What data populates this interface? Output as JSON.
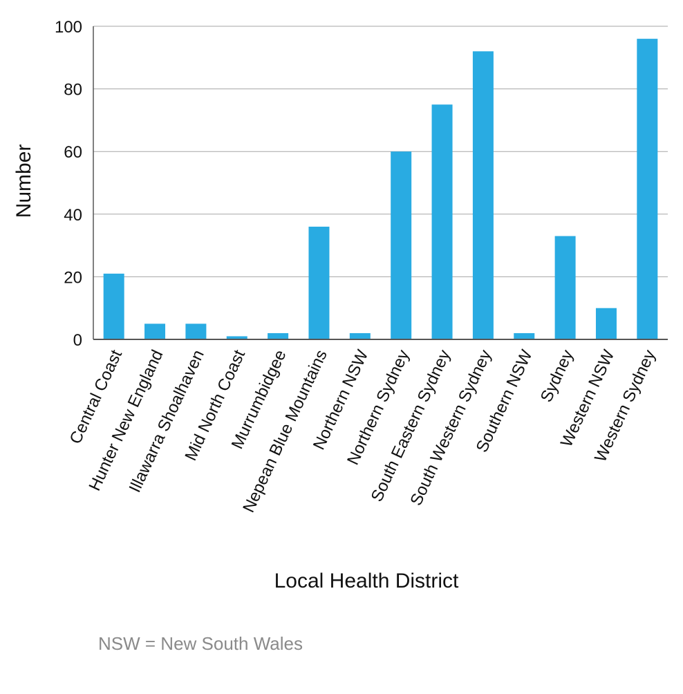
{
  "chart_data": {
    "type": "bar",
    "categories": [
      "Central Coast",
      "Hunter New England",
      "Illawarra Shoalhaven",
      "Mid North Coast",
      "Murrumbidgee",
      "Nepean Blue Mountains",
      "Northern NSW",
      "Northern Sydney",
      "South Eastern Sydney",
      "South Western Sydney",
      "Southern NSW",
      "Sydney",
      "Western NSW",
      "Western Sydney"
    ],
    "values": [
      21,
      5,
      5,
      1,
      2,
      36,
      2,
      60,
      75,
      92,
      2,
      33,
      10,
      96
    ],
    "xlabel": "Local Health District",
    "ylabel": "Number",
    "ylim": [
      0,
      100
    ],
    "yticks": [
      0,
      20,
      40,
      60,
      80,
      100
    ],
    "grid": true,
    "bar_color": "#29ABE2"
  },
  "footnote": "NSW = New South Wales"
}
